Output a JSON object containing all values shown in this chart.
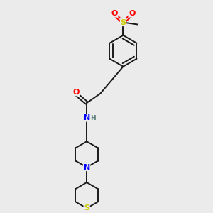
{
  "bg_color": "#ebebeb",
  "bond_color": "#1a1a1a",
  "atom_colors": {
    "O": "#ff0000",
    "N": "#0000ff",
    "S": "#cccc00",
    "H": "#555555"
  },
  "figsize": [
    3.0,
    3.0
  ],
  "dpi": 100
}
